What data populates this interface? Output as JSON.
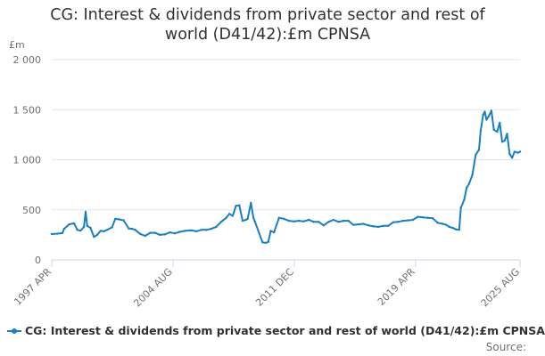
{
  "colors": {
    "series": "#1a7fc1",
    "grid": "#e6e6e6",
    "axis": "#ccd6eb"
  },
  "legend": {
    "label": "CG: Interest & dividends from private sector and rest of world (D41/42):£m CPNSA"
  },
  "source": {
    "label": "Source:"
  },
  "chart_data": {
    "type": "line",
    "title": "CG: Interest & dividends from private sector and rest of world (D41/42):£m CPNSA",
    "title_lines": [
      "CG: Interest & dividends from private sector and rest of",
      "world (D41/42):£m CPNSA"
    ],
    "ylabel": "£m",
    "xlabel": "",
    "ylim": [
      0,
      2000
    ],
    "yticks": [
      0,
      500,
      1000,
      1500,
      2000
    ],
    "ytick_labels": [
      "0",
      "500",
      "1 000",
      "1 500",
      "2 000"
    ],
    "xlim": [
      1997.25,
      2025.58
    ],
    "xticks": [
      1997.25,
      2004.58,
      2011.92,
      2019.25,
      2025.58
    ],
    "xtick_labels": [
      "1997 APR",
      "2004 AUG",
      "2011 DEC",
      "2019 APR",
      "2025 AUG"
    ],
    "grid": true,
    "legend_position": "bottom",
    "series": [
      {
        "name": "CG: Interest & dividends from private sector and rest of world (D41/42):£m CPNSA",
        "x": [
          1997.25,
          1997.6,
          1997.9,
          1998.0,
          1998.3,
          1998.6,
          1998.8,
          1999.0,
          1999.2,
          1999.3,
          1999.4,
          1999.6,
          1999.8,
          2000.0,
          2000.2,
          2000.4,
          2000.6,
          2000.9,
          2001.1,
          2001.3,
          2001.6,
          2001.9,
          2002.1,
          2002.3,
          2002.6,
          2002.9,
          2003.2,
          2003.5,
          2003.8,
          2004.1,
          2004.4,
          2004.7,
          2005.0,
          2005.3,
          2005.7,
          2006.0,
          2006.3,
          2006.6,
          2006.9,
          2007.2,
          2007.5,
          2007.8,
          2008.0,
          2008.2,
          2008.4,
          2008.6,
          2008.8,
          2009.0,
          2009.1,
          2009.3,
          2009.45,
          2009.55,
          2010.0,
          2010.2,
          2010.35,
          2010.5,
          2010.7,
          2011.0,
          2011.3,
          2011.6,
          2011.9,
          2012.2,
          2012.5,
          2012.8,
          2013.1,
          2013.4,
          2013.7,
          2014.0,
          2014.3,
          2014.6,
          2014.9,
          2015.2,
          2015.5,
          2015.8,
          2016.1,
          2016.4,
          2016.7,
          2017.0,
          2017.3,
          2017.6,
          2017.9,
          2018.2,
          2018.5,
          2018.8,
          2019.1,
          2019.4,
          2019.7,
          2020.0,
          2020.3,
          2020.6,
          2020.9,
          2021.1,
          2021.3,
          2021.5,
          2021.7,
          2021.9,
          2022.0,
          2022.2,
          2022.35,
          2022.5,
          2022.7,
          2022.9,
          2023.1,
          2023.2,
          2023.35,
          2023.45,
          2023.55,
          2023.7,
          2023.85,
          2024.0,
          2024.2,
          2024.35,
          2024.5,
          2024.65,
          2024.8,
          2024.95,
          2025.1,
          2025.25,
          2025.45,
          2025.58
        ],
        "values": [
          258,
          262,
          268,
          310,
          355,
          365,
          300,
          292,
          330,
          480,
          340,
          320,
          230,
          250,
          290,
          285,
          300,
          325,
          410,
          405,
          395,
          315,
          310,
          300,
          260,
          240,
          270,
          270,
          250,
          255,
          275,
          265,
          280,
          290,
          295,
          285,
          300,
          300,
          310,
          330,
          380,
          420,
          460,
          440,
          540,
          545,
          390,
          400,
          410,
          570,
          420,
          380,
          175,
          170,
          180,
          290,
          275,
          420,
          410,
          390,
          385,
          390,
          385,
          400,
          380,
          380,
          345,
          380,
          400,
          380,
          390,
          390,
          350,
          355,
          360,
          345,
          335,
          330,
          340,
          340,
          375,
          380,
          390,
          395,
          400,
          430,
          425,
          420,
          415,
          370,
          360,
          350,
          330,
          320,
          305,
          300,
          520,
          600,
          720,
          760,
          850,
          1050,
          1100,
          1290,
          1450,
          1480,
          1400,
          1440,
          1490,
          1300,
          1280,
          1370,
          1180,
          1190,
          1260,
          1060,
          1020,
          1080,
          1070,
          1080
        ]
      }
    ]
  }
}
